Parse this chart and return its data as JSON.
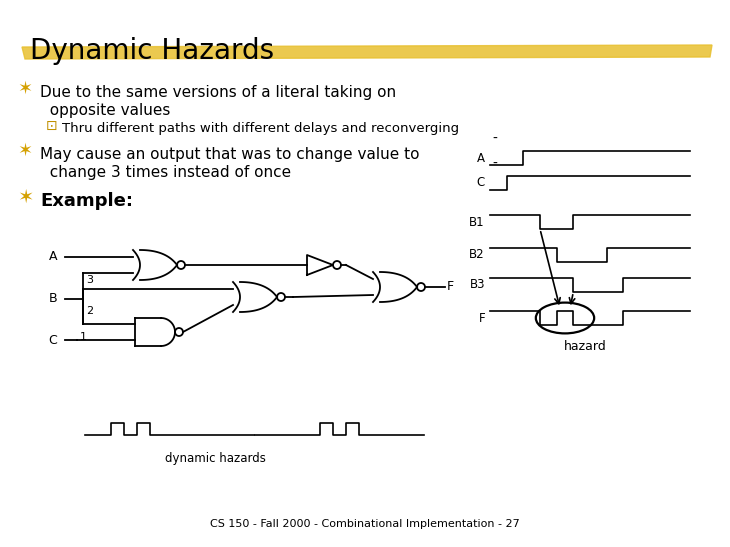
{
  "title": "Dynamic Hazards",
  "title_fontsize": 20,
  "highlight_color": "#E8C030",
  "highlight_alpha": 0.85,
  "background_color": "#ffffff",
  "bullet_color": "#D4A000",
  "sub_bullet_color": "#C09000",
  "bullet1_text1": "Due to the same versions of a literal taking on",
  "bullet1_text2": "  opposite values",
  "sub_bullet_text": "Thru different paths with different delays and reconverging",
  "bullet2_text1": "May cause an output that was to change value to",
  "bullet2_text2": "  change 3 times instead of once",
  "bullet3_text": "Example:",
  "footer_text": "CS 150 - Fall 2000 - Combinational Implementation - 27",
  "main_fontsize": 11,
  "sub_fontsize": 9.5,
  "footer_fontsize": 8,
  "example_fontsize": 13
}
